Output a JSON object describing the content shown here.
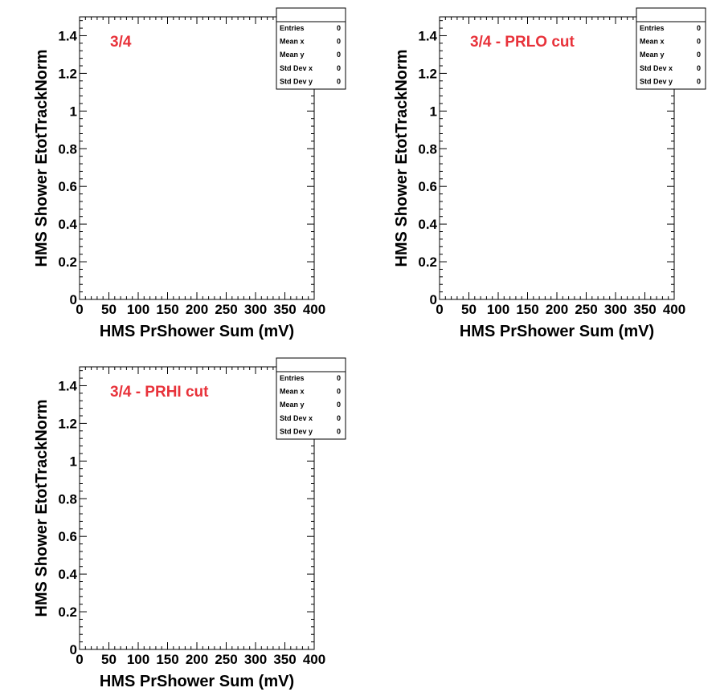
{
  "chart_data": [
    {
      "type": "scatter",
      "title": "3/4",
      "xlabel": "HMS PrShower Sum (mV)",
      "ylabel": "HMS Shower EtotTrackNorm",
      "xlim": [
        0,
        400
      ],
      "ylim": [
        0,
        1.5
      ],
      "xticks": [
        "0",
        "50",
        "100",
        "150",
        "200",
        "250",
        "300",
        "350",
        "400"
      ],
      "yticks": [
        "0",
        "0.2",
        "0.4",
        "0.6",
        "0.8",
        "1",
        "1.2",
        "1.4"
      ],
      "points": [],
      "stats": [
        {
          "label": "Entries",
          "value": "0"
        },
        {
          "label": "Mean x",
          "value": "0"
        },
        {
          "label": "Mean y",
          "value": "0"
        },
        {
          "label": "Std Dev x",
          "value": "0"
        },
        {
          "label": "Std Dev y",
          "value": "0"
        }
      ]
    },
    {
      "type": "scatter",
      "title": "3/4 - PRLO cut",
      "xlabel": "HMS PrShower Sum (mV)",
      "ylabel": "HMS Shower EtotTrackNorm",
      "xlim": [
        0,
        400
      ],
      "ylim": [
        0,
        1.5
      ],
      "xticks": [
        "0",
        "50",
        "100",
        "150",
        "200",
        "250",
        "300",
        "350",
        "400"
      ],
      "yticks": [
        "0",
        "0.2",
        "0.4",
        "0.6",
        "0.8",
        "1",
        "1.2",
        "1.4"
      ],
      "points": [],
      "stats": [
        {
          "label": "Entries",
          "value": "0"
        },
        {
          "label": "Mean x",
          "value": "0"
        },
        {
          "label": "Mean y",
          "value": "0"
        },
        {
          "label": "Std Dev x",
          "value": "0"
        },
        {
          "label": "Std Dev y",
          "value": "0"
        }
      ]
    },
    {
      "type": "scatter",
      "title": "3/4 - PRHI cut",
      "xlabel": "HMS PrShower Sum (mV)",
      "ylabel": "HMS Shower EtotTrackNorm",
      "xlim": [
        0,
        400
      ],
      "ylim": [
        0,
        1.5
      ],
      "xticks": [
        "0",
        "50",
        "100",
        "150",
        "200",
        "250",
        "300",
        "350",
        "400"
      ],
      "yticks": [
        "0",
        "0.2",
        "0.4",
        "0.6",
        "0.8",
        "1",
        "1.2",
        "1.4"
      ],
      "points": [],
      "stats": [
        {
          "label": "Entries",
          "value": "0"
        },
        {
          "label": "Mean x",
          "value": "0"
        },
        {
          "label": "Mean y",
          "value": "0"
        },
        {
          "label": "Std Dev x",
          "value": "0"
        },
        {
          "label": "Std Dev y",
          "value": "0"
        }
      ]
    }
  ],
  "colors": {
    "title": "#e8323a",
    "axis": "#000000",
    "background": "#ffffff"
  }
}
